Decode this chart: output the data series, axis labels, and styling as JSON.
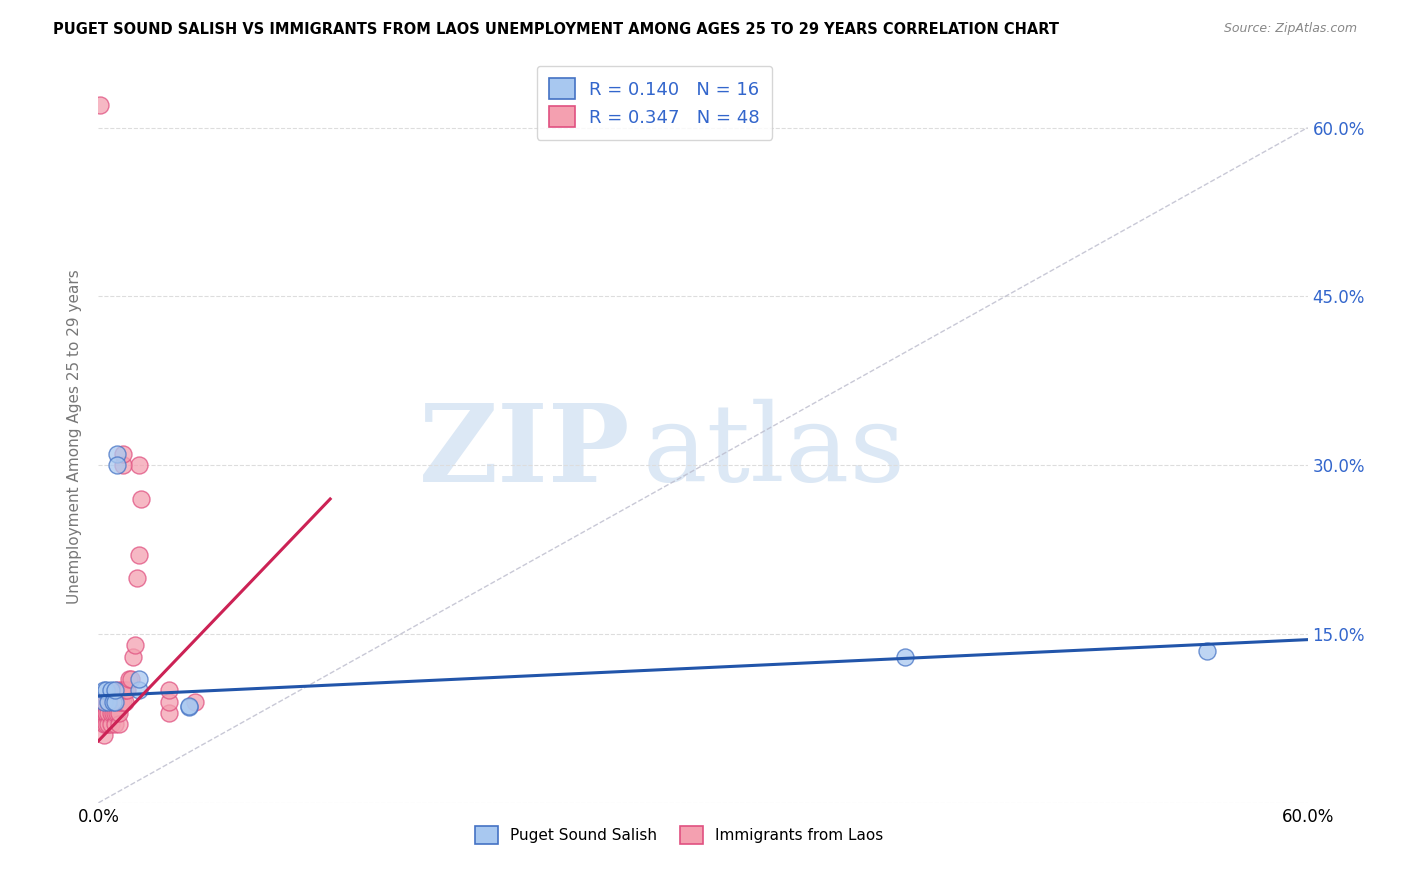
{
  "title": "PUGET SOUND SALISH VS IMMIGRANTS FROM LAOS UNEMPLOYMENT AMONG AGES 25 TO 29 YEARS CORRELATION CHART",
  "source": "Source: ZipAtlas.com",
  "ylabel": "Unemployment Among Ages 25 to 29 years",
  "xlim": [
    0.0,
    0.6
  ],
  "ylim": [
    0.0,
    0.65
  ],
  "yticks": [
    0.0,
    0.15,
    0.3,
    0.45,
    0.6
  ],
  "blue_label": "Puget Sound Salish",
  "pink_label": "Immigrants from Laos",
  "blue_R": 0.14,
  "blue_N": 16,
  "pink_R": 0.347,
  "pink_N": 48,
  "blue_color": "#A8C8F0",
  "pink_color": "#F4A0B0",
  "blue_edge_color": "#4472C4",
  "pink_edge_color": "#E05080",
  "blue_line_color": "#2255AA",
  "pink_line_color": "#CC2255",
  "ref_line_color": "#BBBBCC",
  "legend_text_color": "#3366CC",
  "background_color": "#FFFFFF",
  "grid_color": "#DDDDDD",
  "blue_points_x": [
    0.003,
    0.003,
    0.004,
    0.005,
    0.006,
    0.007,
    0.008,
    0.008,
    0.009,
    0.009,
    0.02,
    0.02,
    0.045,
    0.045,
    0.4,
    0.55
  ],
  "blue_points_y": [
    0.09,
    0.1,
    0.1,
    0.09,
    0.1,
    0.09,
    0.09,
    0.1,
    0.31,
    0.3,
    0.1,
    0.11,
    0.085,
    0.086,
    0.13,
    0.135
  ],
  "pink_points_x": [
    0.001,
    0.002,
    0.002,
    0.003,
    0.003,
    0.003,
    0.004,
    0.004,
    0.004,
    0.004,
    0.005,
    0.005,
    0.005,
    0.006,
    0.006,
    0.006,
    0.007,
    0.007,
    0.008,
    0.008,
    0.008,
    0.009,
    0.009,
    0.009,
    0.01,
    0.01,
    0.01,
    0.011,
    0.011,
    0.012,
    0.012,
    0.013,
    0.013,
    0.014,
    0.015,
    0.016,
    0.017,
    0.018,
    0.019,
    0.02,
    0.02,
    0.021,
    0.035,
    0.035,
    0.035,
    0.048,
    0.012,
    0.012
  ],
  "pink_points_y": [
    0.62,
    0.08,
    0.09,
    0.06,
    0.07,
    0.08,
    0.07,
    0.08,
    0.08,
    0.09,
    0.07,
    0.08,
    0.09,
    0.07,
    0.08,
    0.09,
    0.08,
    0.09,
    0.07,
    0.08,
    0.09,
    0.08,
    0.09,
    0.1,
    0.07,
    0.08,
    0.09,
    0.09,
    0.1,
    0.09,
    0.1,
    0.09,
    0.1,
    0.1,
    0.11,
    0.11,
    0.13,
    0.14,
    0.2,
    0.22,
    0.3,
    0.27,
    0.08,
    0.09,
    0.1,
    0.09,
    0.3,
    0.31
  ],
  "blue_trend_x": [
    0.0,
    0.6
  ],
  "blue_trend_y": [
    0.095,
    0.145
  ],
  "pink_trend_x": [
    0.0,
    0.115
  ],
  "pink_trend_y": [
    0.055,
    0.27
  ],
  "watermark_zip_text": "ZIP",
  "watermark_atlas_text": "atlas",
  "watermark_color": "#DCE8F5"
}
